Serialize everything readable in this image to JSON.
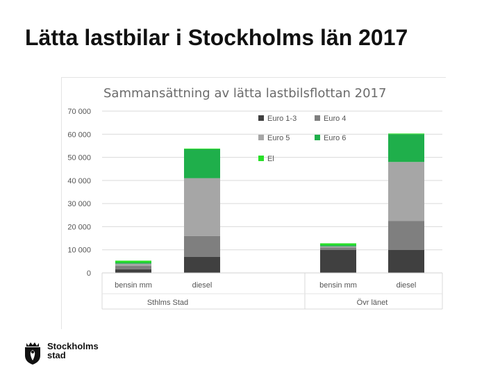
{
  "slide": {
    "title": "Lätta lastbilar i Stockholms län 2017"
  },
  "logo": {
    "line1": "Stockholms",
    "line2": "stad",
    "icon": "stockholm-crown-shield-icon"
  },
  "colors": {
    "euro13": "#404040",
    "euro4": "#7f7f7f",
    "euro5": "#a6a6a6",
    "euro6": "#1faf4b",
    "el": "#28e028"
  },
  "chart_data": {
    "type": "bar",
    "stacked": true,
    "title": "Sammansättning av lätta lastbilsflottan 2017",
    "xlabel": "",
    "ylabel": "",
    "ylim": [
      0,
      70000
    ],
    "yticks": [
      0,
      10000,
      20000,
      30000,
      40000,
      50000,
      60000,
      70000
    ],
    "ytick_labels": [
      "0",
      "10 000",
      "20 000",
      "30 000",
      "40 000",
      "50 000",
      "60 000",
      "70 000"
    ],
    "grid": true,
    "legend_position": "top-right",
    "categories": [
      "bensin mm",
      "diesel",
      "bensin mm",
      "diesel"
    ],
    "groups": [
      {
        "label": "Sthlms Stad",
        "categories": [
          "bensin mm",
          "diesel"
        ]
      },
      {
        "label": "Övr länet",
        "categories": [
          "bensin mm",
          "diesel"
        ]
      }
    ],
    "series": [
      {
        "name": "Euro 1-3",
        "color": "#404040",
        "values": [
          1500,
          7000,
          10000,
          10000
        ]
      },
      {
        "name": "Euro 4",
        "color": "#7f7f7f",
        "values": [
          1500,
          9000,
          1000,
          12500
        ]
      },
      {
        "name": "Euro 5",
        "color": "#a6a6a6",
        "values": [
          1000,
          25000,
          500,
          25500
        ]
      },
      {
        "name": "Euro 6",
        "color": "#1faf4b",
        "values": [
          500,
          12500,
          500,
          12000
        ]
      },
      {
        "name": "El",
        "color": "#28e028",
        "values": [
          800,
          300,
          800,
          300
        ]
      }
    ]
  }
}
